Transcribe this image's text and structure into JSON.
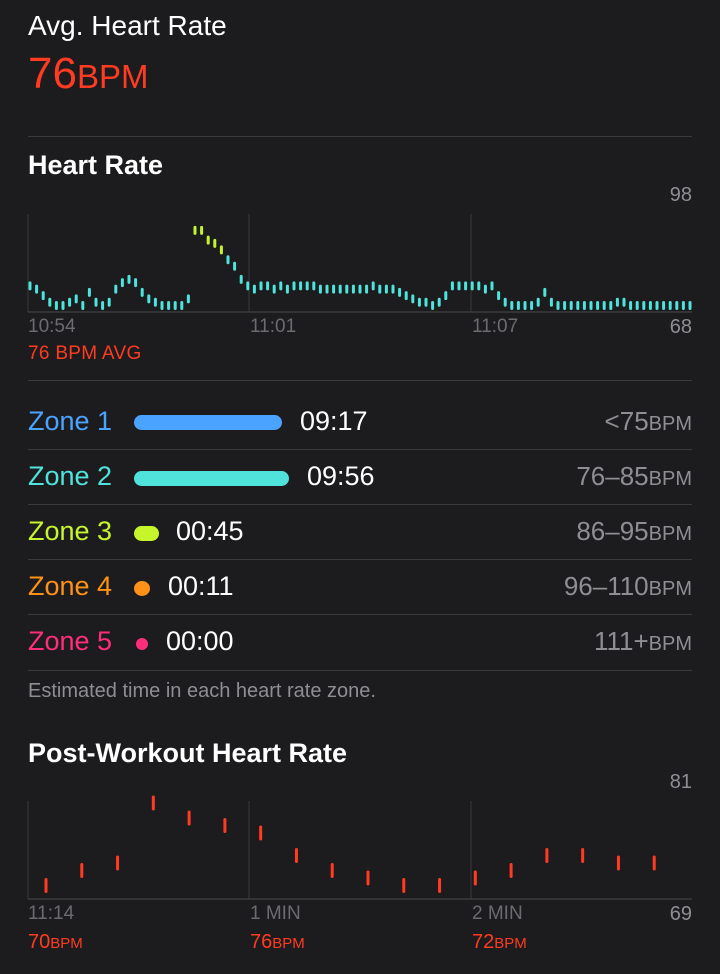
{
  "summary": {
    "title": "Avg. Heart Rate",
    "value": "76",
    "unit": "BPM"
  },
  "heart_rate": {
    "title": "Heart Rate",
    "y_max_label": "98",
    "y_min_label": "68",
    "x_labels": [
      "10:54",
      "11:01",
      "11:07"
    ],
    "avg_text": "76 BPM AVG"
  },
  "zones": [
    {
      "name": "Zone 1",
      "time": "09:17",
      "range": "<75",
      "unit": "BPM",
      "color": "#4aa3ff"
    },
    {
      "name": "Zone 2",
      "time": "09:56",
      "range": "76–85",
      "unit": "BPM",
      "color": "#4fe3dc"
    },
    {
      "name": "Zone 3",
      "time": "00:45",
      "range": "86–95",
      "unit": "BPM",
      "color": "#c7f52b"
    },
    {
      "name": "Zone 4",
      "time": "00:11",
      "range": "96–110",
      "unit": "BPM",
      "color": "#ff9216"
    },
    {
      "name": "Zone 5",
      "time": "00:00",
      "range": "111+",
      "unit": "BPM",
      "color": "#ff2d7a"
    }
  ],
  "zones_note": "Estimated time in each heart rate zone.",
  "post_workout": {
    "title": "Post-Workout Heart Rate",
    "y_max_label": "81",
    "y_min_label": "69",
    "x_labels": [
      "11:14",
      "1 MIN",
      "2 MIN"
    ],
    "bpm_labels": [
      {
        "value": "70",
        "unit": "BPM"
      },
      {
        "value": "76",
        "unit": "BPM"
      },
      {
        "value": "72",
        "unit": "BPM"
      }
    ]
  },
  "chart_data": [
    {
      "type": "scatter",
      "title": "Heart Rate",
      "ylim": [
        68,
        98
      ],
      "x_ticks": [
        "10:54",
        "11:01",
        "11:07"
      ],
      "x_minutes": [
        0,
        0.2,
        0.4,
        0.6,
        0.8,
        1.0,
        1.2,
        1.4,
        1.6,
        1.8,
        2.0,
        2.2,
        2.4,
        2.6,
        2.8,
        3.0,
        3.2,
        3.4,
        3.6,
        3.8,
        4.0,
        4.2,
        4.4,
        4.6,
        4.8,
        5.0,
        5.2,
        5.4,
        5.6,
        5.8,
        6.0,
        6.2,
        6.4,
        6.6,
        6.8,
        7.0,
        7.2,
        7.4,
        7.6,
        7.8,
        8.0,
        8.2,
        8.4,
        8.6,
        8.8,
        9.0,
        9.2,
        9.4,
        9.6,
        9.8,
        10.0,
        10.2,
        10.4,
        10.6,
        10.8,
        11.0,
        11.2,
        11.4,
        11.6,
        11.8,
        12.0,
        12.2,
        12.4,
        12.6,
        12.8,
        13.0,
        13.2,
        13.4,
        13.6,
        13.8,
        14.0,
        14.2,
        14.4,
        14.6,
        14.8,
        15.0,
        15.2,
        15.4,
        15.6,
        15.8,
        16.0,
        16.2,
        16.4,
        16.6,
        16.8,
        17.0,
        17.2,
        17.4,
        17.6,
        17.8,
        18.0,
        18.2,
        18.4,
        18.6,
        18.8,
        19.0,
        19.2,
        19.4,
        19.6,
        19.8,
        20.0
      ],
      "bpm": [
        76,
        75,
        73,
        71,
        70,
        70,
        71,
        72,
        70,
        74,
        71,
        70,
        71,
        75,
        77,
        78,
        77,
        74,
        72,
        71,
        70,
        70,
        70,
        70,
        72,
        93,
        93,
        90,
        89,
        87,
        84,
        82,
        78,
        76,
        75,
        76,
        76,
        75,
        76,
        75,
        76,
        76,
        76,
        76,
        75,
        75,
        75,
        75,
        75,
        75,
        75,
        75,
        76,
        75,
        75,
        75,
        74,
        73,
        72,
        71,
        71,
        70,
        71,
        73,
        76,
        76,
        76,
        76,
        76,
        75,
        76,
        73,
        71,
        70,
        70,
        70,
        70,
        71,
        74,
        71,
        70,
        70,
        70,
        70,
        70,
        70,
        70,
        70,
        70,
        71,
        71,
        70,
        70,
        70,
        70,
        70,
        70,
        70,
        70,
        70,
        70
      ]
    },
    {
      "type": "scatter",
      "title": "Post-Workout Heart Rate",
      "ylim": [
        69,
        81
      ],
      "x_ticks": [
        "11:14",
        "1 MIN",
        "2 MIN"
      ],
      "x_seconds": [
        0,
        10,
        20,
        30,
        40,
        50,
        60,
        70,
        80,
        90,
        100,
        110,
        120,
        130,
        140,
        150,
        160,
        170
      ],
      "bpm": [
        70,
        72,
        73,
        81,
        79,
        78,
        77,
        74,
        72,
        71,
        70,
        70,
        71,
        72,
        74,
        74,
        73,
        73
      ]
    }
  ]
}
